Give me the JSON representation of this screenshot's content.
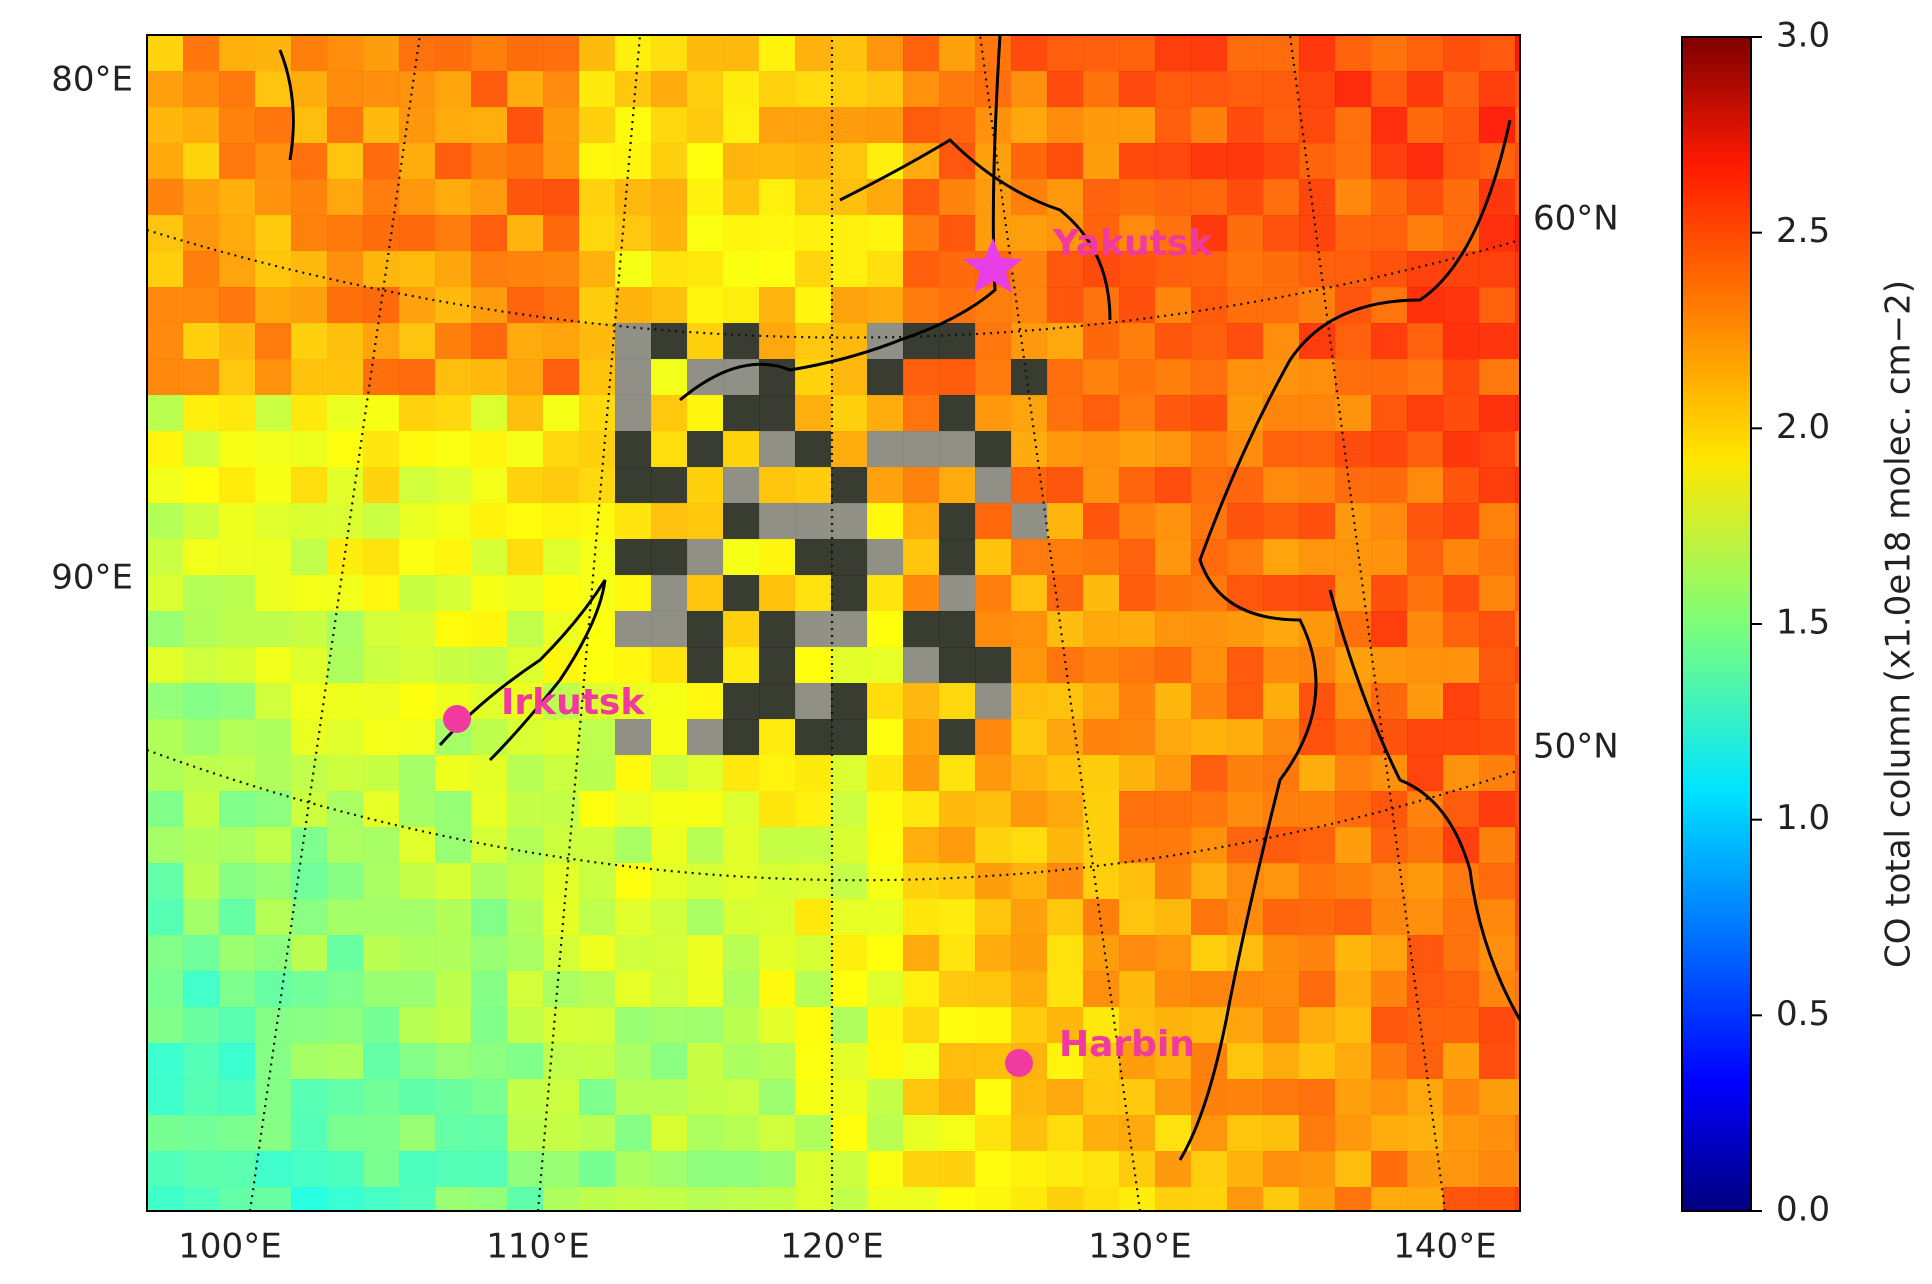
{
  "map": {
    "lon_labels_bottom": [
      "100°E",
      "110°E",
      "120°E",
      "130°E",
      "140°E"
    ],
    "lon_labels_left": [
      "80°E",
      "90°E"
    ],
    "lat_labels_right": [
      "60°N",
      "50°N"
    ],
    "cities": [
      "Yakutsk",
      "Irkutsk",
      "Harbin"
    ],
    "colorbar": {
      "label": "CO total column (x1.0e18 molec. cm−2)",
      "lim": [
        0,
        3
      ],
      "ticks": [
        {
          "value": 0,
          "label": "0.0"
        },
        {
          "value": 0.5,
          "label": "0.5"
        },
        {
          "value": 1,
          "label": "1.0"
        },
        {
          "value": 1.5,
          "label": "1.5"
        },
        {
          "value": 2,
          "label": "2.0"
        },
        {
          "value": 2.5,
          "label": "2.5"
        },
        {
          "value": 3,
          "label": "3.0"
        }
      ]
    }
  }
}
